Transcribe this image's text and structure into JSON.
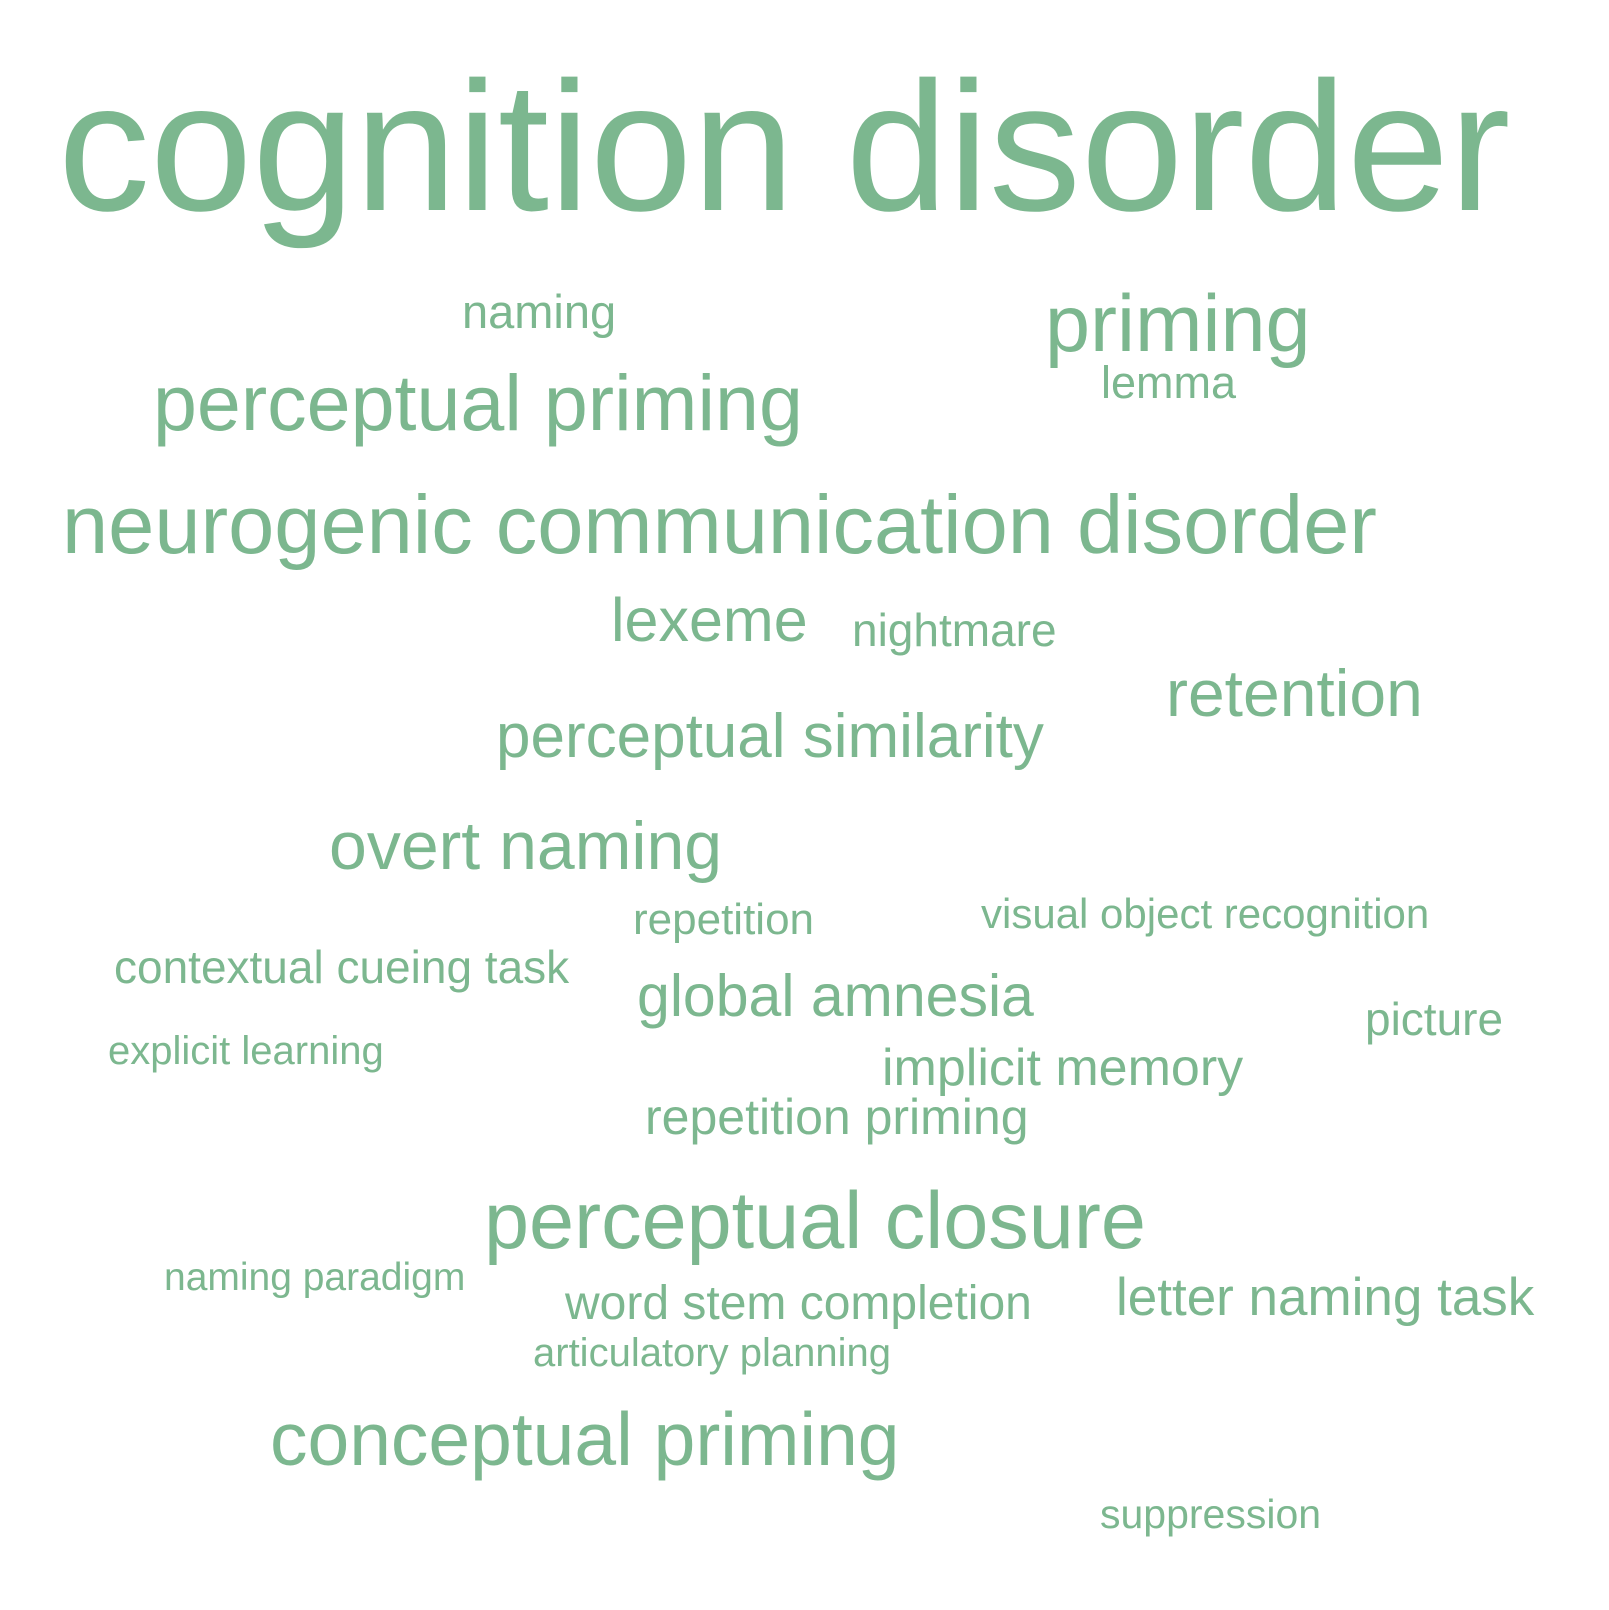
{
  "color": "#7cb78f",
  "words": [
    {
      "text": "cognition disorder"
    },
    {
      "text": "naming"
    },
    {
      "text": "priming"
    },
    {
      "text": "lemma"
    },
    {
      "text": "perceptual priming"
    },
    {
      "text": "neurogenic communication disorder"
    },
    {
      "text": "lexeme"
    },
    {
      "text": "nightmare"
    },
    {
      "text": "retention"
    },
    {
      "text": "perceptual similarity"
    },
    {
      "text": "overt naming"
    },
    {
      "text": "repetition"
    },
    {
      "text": "visual object recognition"
    },
    {
      "text": "contextual cueing task"
    },
    {
      "text": "global amnesia"
    },
    {
      "text": "picture"
    },
    {
      "text": "explicit learning"
    },
    {
      "text": "implicit memory"
    },
    {
      "text": "repetition priming"
    },
    {
      "text": "perceptual closure"
    },
    {
      "text": "naming paradigm"
    },
    {
      "text": "word stem completion"
    },
    {
      "text": "letter naming task"
    },
    {
      "text": "articulatory planning"
    },
    {
      "text": "conceptual priming"
    },
    {
      "text": "suppression"
    }
  ]
}
